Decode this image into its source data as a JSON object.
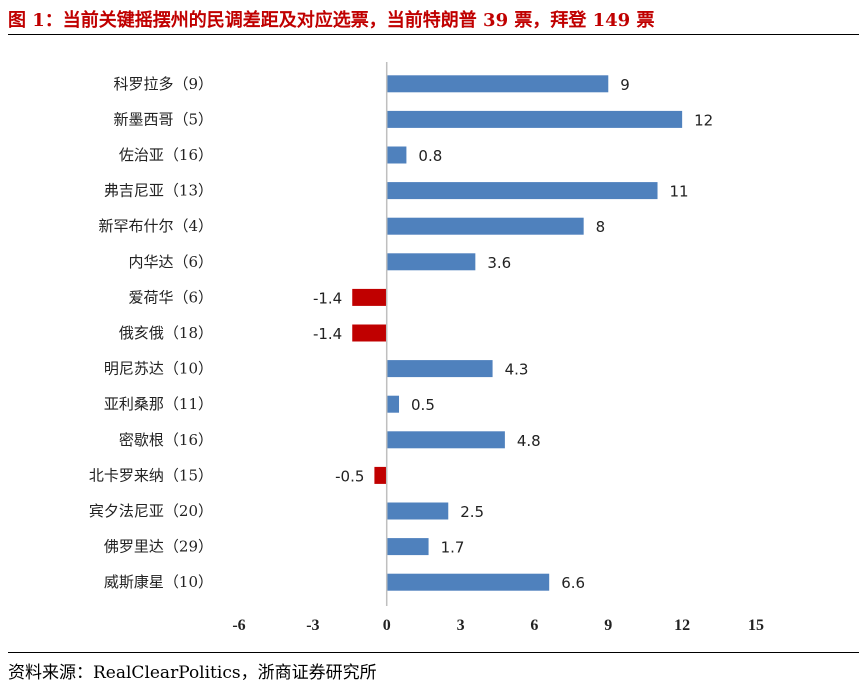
{
  "title": "图 1：当前关键摇摆州的民调差距及对应选票，当前特朗普 39 票，拜登 149 票",
  "source": "资料来源：RealClearPolitics，浙商证券研究所",
  "colors": {
    "positive": "#4f81bd",
    "negative": "#c00000",
    "title": "#c00000"
  },
  "chart_data": {
    "type": "bar",
    "orientation": "horizontal",
    "categories": [
      "科罗拉多（9）",
      "新墨西哥（5）",
      "佐治亚（16）",
      "弗吉尼亚（13）",
      "新罕布什尔（4）",
      "内华达（6）",
      "爱荷华（6）",
      "俄亥俄（18）",
      "明尼苏达（10）",
      "亚利桑那（11）",
      "密歇根（16）",
      "北卡罗来纳（15）",
      "宾夕法尼亚（20）",
      "佛罗里达（29）",
      "威斯康星（10）"
    ],
    "values": [
      9,
      12,
      0.8,
      11,
      8,
      3.6,
      -1.4,
      -1.4,
      4.3,
      0.5,
      4.8,
      -0.5,
      2.5,
      1.7,
      6.6
    ],
    "value_labels": [
      "9",
      "12",
      "0.8",
      "11",
      "8",
      "3.6",
      "-1.4",
      "-1.4",
      "4.3",
      "0.5",
      "4.8",
      "-0.5",
      "2.5",
      "1.7",
      "6.6"
    ],
    "xlim": [
      -6,
      15
    ],
    "xticks": [
      "-6",
      "-3",
      "0",
      "3",
      "6",
      "9",
      "12",
      "15"
    ],
    "grid": false,
    "legend": "none"
  }
}
